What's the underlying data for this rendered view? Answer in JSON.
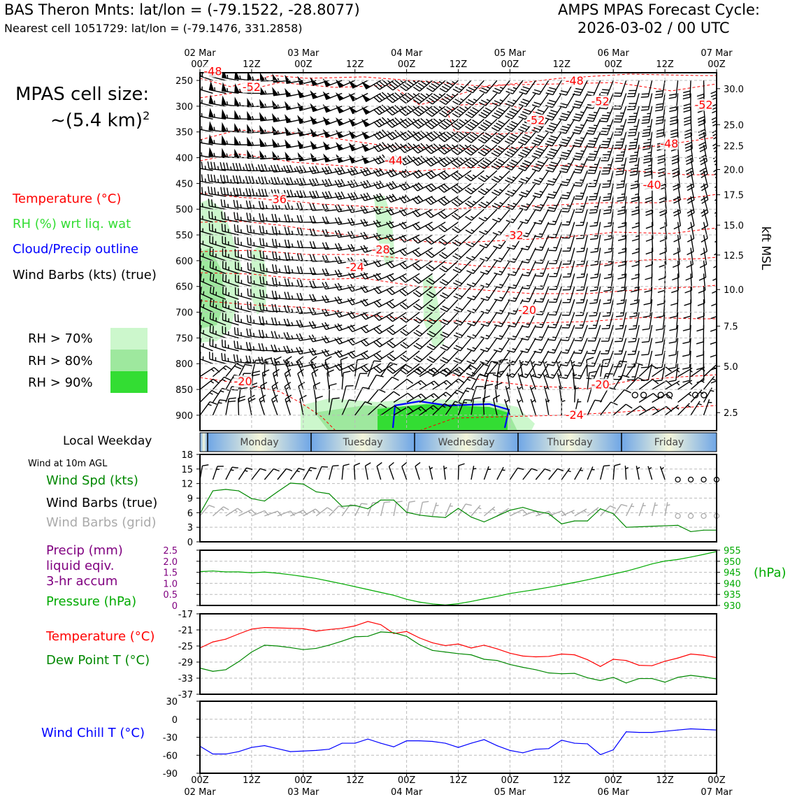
{
  "header": {
    "left_line1": "BAS Theron Mnts: lat/lon = (-79.1522, -28.8077)",
    "left_line2": "Nearest cell 1051729: lat/lon = (-79.1476, 331.2858)",
    "right_line1": "AMPS MPAS Forecast Cycle:",
    "right_line2": "2026-03-02 / 00 UTC"
  },
  "cell_size": {
    "line1": "MPAS cell size:",
    "line2_base": "~(5.4 km)",
    "line2_sup": "2"
  },
  "legend": {
    "temperature": "Temperature (°C)",
    "rh": "RH (%) wrt liq. wat",
    "cloud": "Cloud/Precip outline",
    "wind": "Wind Barbs (kts) (true)",
    "rh_levels": [
      {
        "label": "RH > 70%",
        "color": "#ccf7cc"
      },
      {
        "label": "RH > 80%",
        "color": "#9ee89e"
      },
      {
        "label": "RH > 90%",
        "color": "#33dd33"
      }
    ]
  },
  "colors": {
    "temperature": "#ff0000",
    "rh_light": "#ccf7cc",
    "rh_mid": "#9ee89e",
    "rh_dark": "#33dd33",
    "cloud": "#0000ff",
    "pressure": "#00aa00",
    "dewpoint": "#007700",
    "precip_axis": "#800080",
    "windchill": "#0000ff",
    "grid_barbs": "#aaaaaa"
  },
  "chart_data": [
    {
      "id": "upper-air",
      "type": "heatmap",
      "time_top_labels": [
        {
          "hour": 0,
          "top": "02 Mar",
          "bottom": "00Z"
        },
        {
          "hour": 12,
          "top": "",
          "bottom": "12Z"
        },
        {
          "hour": 24,
          "top": "03 Mar",
          "bottom": "00Z"
        },
        {
          "hour": 36,
          "top": "",
          "bottom": "12Z"
        },
        {
          "hour": 48,
          "top": "04 Mar",
          "bottom": "00Z"
        },
        {
          "hour": 60,
          "top": "",
          "bottom": "12Z"
        },
        {
          "hour": 72,
          "top": "05 Mar",
          "bottom": "00Z"
        },
        {
          "hour": 84,
          "top": "",
          "bottom": "12Z"
        },
        {
          "hour": 96,
          "top": "06 Mar",
          "bottom": "00Z"
        },
        {
          "hour": 108,
          "top": "",
          "bottom": "12Z"
        },
        {
          "hour": 120,
          "top": "07 Mar",
          "bottom": "00Z"
        }
      ],
      "pressure_ticks": [
        "250",
        "300",
        "350",
        "400",
        "450",
        "500",
        "550",
        "600",
        "650",
        "700",
        "750",
        "800",
        "850",
        "900"
      ],
      "pressure_range": [
        235,
        930
      ],
      "kft_ticks": [
        {
          "label": "30.0",
          "p": 266
        },
        {
          "label": "25.0",
          "p": 336
        },
        {
          "label": "22.5",
          "p": 377
        },
        {
          "label": "20.0",
          "p": 423
        },
        {
          "label": "17.5",
          "p": 472
        },
        {
          "label": "15.0",
          "p": 531
        },
        {
          "label": "12.5",
          "p": 589
        },
        {
          "label": "10.0",
          "p": 656
        },
        {
          "label": "7.5",
          "p": 727
        },
        {
          "label": "5.0",
          "p": 805
        },
        {
          "label": "2.5",
          "p": 895
        }
      ],
      "right_axis_label": "kft MSL",
      "temperature_labels": [
        {
          "text": "-48",
          "hour": 3,
          "p": 240
        },
        {
          "text": "-52",
          "hour": 12,
          "p": 270
        },
        {
          "text": "-48",
          "hour": 87,
          "p": 258
        },
        {
          "text": "-52",
          "hour": 93,
          "p": 298
        },
        {
          "text": "-52",
          "hour": 117,
          "p": 305
        },
        {
          "text": "-52",
          "hour": 78,
          "p": 335
        },
        {
          "text": "-48",
          "hour": 109,
          "p": 380
        },
        {
          "text": "-44",
          "hour": 45,
          "p": 413
        },
        {
          "text": "-40",
          "hour": 105,
          "p": 460
        },
        {
          "text": "-36",
          "hour": 18,
          "p": 488
        },
        {
          "text": "-32",
          "hour": 73,
          "p": 558
        },
        {
          "text": "-28",
          "hour": 42,
          "p": 586
        },
        {
          "text": "-24",
          "hour": 36,
          "p": 620
        },
        {
          "text": "-20",
          "hour": 76,
          "p": 703
        },
        {
          "text": "-20",
          "hour": 10,
          "p": 842
        },
        {
          "text": "-20",
          "hour": 93,
          "p": 848
        },
        {
          "text": "-24",
          "hour": 87,
          "p": 907
        }
      ]
    },
    {
      "id": "weekday-band",
      "type": "table",
      "title": "Local Weekday",
      "days": [
        "Monday",
        "Tuesday",
        "Wednesday",
        "Thursday",
        "Friday"
      ]
    },
    {
      "id": "wind-10m",
      "type": "line",
      "title": "Wind at 10m AGL",
      "ylabel": "Wind Spd (kts)",
      "barbs_true_label": "Wind Barbs (true)",
      "barbs_grid_label": "Wind Barbs (grid)",
      "ylim": [
        0,
        18
      ],
      "yticks": [
        0,
        3,
        6,
        9,
        12,
        15,
        18
      ],
      "series": [
        {
          "x": [
            0,
            3,
            6,
            9,
            12,
            15,
            18,
            21,
            24,
            27,
            30,
            33,
            36,
            39,
            42,
            45,
            48,
            51,
            54,
            57,
            60,
            63,
            66,
            69,
            72,
            75,
            78,
            81,
            84,
            87,
            90,
            93,
            96,
            99,
            102,
            105,
            108,
            111,
            114,
            117,
            120
          ],
          "values": [
            5.8,
            10.5,
            10.8,
            10.5,
            8.9,
            8.4,
            10.3,
            12.1,
            11.9,
            10.3,
            9.9,
            7.3,
            7.5,
            6.8,
            8.6,
            8.6,
            6.1,
            5.5,
            5.2,
            5.0,
            6.9,
            5.1,
            4.1,
            5.3,
            6.5,
            7.1,
            6.3,
            5.8,
            3.7,
            4.3,
            4.3,
            6.8,
            5.8,
            3.0,
            3.1,
            3.2,
            3.3,
            3.4,
            2.1,
            2.4,
            2.4
          ]
        }
      ]
    },
    {
      "id": "precip-pressure",
      "type": "line",
      "left_label_lines": [
        "Precip (mm)",
        "liquid eqiv.",
        "3-hr accum"
      ],
      "right_label": "Pressure (hPa)",
      "right_unit": "(hPa)",
      "precip_ticks": [
        "0",
        "0.5",
        "1.0",
        "1.5",
        "2.0",
        "2.5"
      ],
      "precip_ylim": [
        0,
        2.5
      ],
      "pressure_ticks": [
        "930",
        "935",
        "940",
        "945",
        "950",
        "955"
      ],
      "pressure_ylim": [
        930,
        955
      ],
      "series": [
        {
          "name": "Pressure (hPa)",
          "x": [
            0,
            3,
            6,
            9,
            12,
            15,
            18,
            21,
            24,
            27,
            30,
            33,
            36,
            39,
            42,
            45,
            48,
            51,
            54,
            57,
            60,
            63,
            66,
            69,
            72,
            75,
            78,
            81,
            84,
            87,
            90,
            93,
            96,
            99,
            102,
            105,
            108,
            111,
            114,
            117,
            120
          ],
          "values": [
            945.3,
            945.6,
            945.2,
            945.2,
            944.8,
            945.1,
            944.6,
            943.9,
            943.1,
            942.2,
            941.0,
            939.8,
            938.5,
            937.2,
            935.9,
            934.6,
            932.8,
            931.5,
            930.7,
            930.2,
            930.8,
            931.8,
            933.0,
            934.1,
            935.4,
            936.3,
            937.2,
            938.2,
            939.3,
            940.4,
            941.6,
            942.9,
            944.2,
            945.5,
            947.1,
            948.8,
            950.1,
            950.8,
            951.9,
            953.1,
            954.4
          ]
        }
      ]
    },
    {
      "id": "temperature-dewpoint",
      "type": "line",
      "ylim": [
        -37,
        -17
      ],
      "yticks": [
        -37,
        -33,
        -29,
        -25,
        -21,
        -17
      ],
      "series": [
        {
          "name": "Temperature (°C)",
          "x": [
            0,
            3,
            6,
            9,
            12,
            15,
            18,
            21,
            24,
            27,
            30,
            33,
            36,
            39,
            42,
            45,
            48,
            51,
            54,
            57,
            60,
            63,
            66,
            69,
            72,
            75,
            78,
            81,
            84,
            87,
            90,
            93,
            96,
            99,
            102,
            105,
            108,
            111,
            114,
            117,
            120
          ],
          "values": [
            -25.5,
            -24.0,
            -23.3,
            -22.0,
            -20.8,
            -20.4,
            -20.5,
            -20.6,
            -20.7,
            -21.3,
            -20.9,
            -20.6,
            -20.0,
            -18.9,
            -19.7,
            -21.9,
            -21.4,
            -23.0,
            -24.2,
            -24.9,
            -24.5,
            -25.5,
            -24.8,
            -25.7,
            -26.8,
            -27.5,
            -27.7,
            -27.6,
            -27.0,
            -27.2,
            -28.4,
            -30.1,
            -28.3,
            -28.6,
            -29.8,
            -29.9,
            -28.8,
            -28.0,
            -27.0,
            -27.3,
            -27.9
          ]
        },
        {
          "name": "Dew Point T (°C)",
          "x": [
            0,
            3,
            6,
            9,
            12,
            15,
            18,
            21,
            24,
            27,
            30,
            33,
            36,
            39,
            42,
            45,
            48,
            51,
            54,
            57,
            60,
            63,
            66,
            69,
            72,
            75,
            78,
            81,
            84,
            87,
            90,
            93,
            96,
            99,
            102,
            105,
            108,
            111,
            114,
            117,
            120
          ],
          "values": [
            -30.5,
            -31.3,
            -30.9,
            -28.9,
            -26.5,
            -24.8,
            -25.0,
            -25.4,
            -25.9,
            -25.6,
            -24.8,
            -23.8,
            -22.7,
            -22.6,
            -21.5,
            -21.7,
            -22.6,
            -24.7,
            -26.1,
            -26.5,
            -26.9,
            -27.2,
            -28.3,
            -28.6,
            -29.6,
            -30.3,
            -30.9,
            -31.7,
            -31.9,
            -31.8,
            -32.9,
            -33.6,
            -32.8,
            -34.2,
            -33.1,
            -33.1,
            -34.0,
            -32.8,
            -32.3,
            -32.7,
            -33.2
          ]
        }
      ]
    },
    {
      "id": "wind-chill",
      "type": "line",
      "ylabel": "Wind Chill T (°C)",
      "ylim": [
        -90,
        30
      ],
      "yticks": [
        -90,
        -60,
        -30,
        0,
        30
      ],
      "x_bottom_labels": [
        {
          "hour": 0,
          "top": "00Z",
          "bottom": "02 Mar"
        },
        {
          "hour": 12,
          "top": "12Z",
          "bottom": ""
        },
        {
          "hour": 24,
          "top": "00Z",
          "bottom": "03 Mar"
        },
        {
          "hour": 36,
          "top": "12Z",
          "bottom": ""
        },
        {
          "hour": 48,
          "top": "00Z",
          "bottom": "04 Mar"
        },
        {
          "hour": 60,
          "top": "12Z",
          "bottom": ""
        },
        {
          "hour": 72,
          "top": "00Z",
          "bottom": "05 Mar"
        },
        {
          "hour": 84,
          "top": "12Z",
          "bottom": ""
        },
        {
          "hour": 96,
          "top": "00Z",
          "bottom": "06 Mar"
        },
        {
          "hour": 108,
          "top": "12Z",
          "bottom": ""
        },
        {
          "hour": 120,
          "top": "00Z",
          "bottom": "07 Mar"
        }
      ],
      "series": [
        {
          "x": [
            0,
            3,
            6,
            9,
            12,
            15,
            18,
            21,
            24,
            27,
            30,
            33,
            36,
            39,
            42,
            45,
            48,
            51,
            54,
            57,
            60,
            63,
            66,
            69,
            72,
            75,
            78,
            81,
            84,
            87,
            90,
            93,
            96,
            99,
            102,
            105,
            108,
            111,
            114,
            117,
            120
          ],
          "values": [
            -45,
            -58,
            -58,
            -54,
            -47,
            -44,
            -49,
            -54,
            -53,
            -52,
            -50,
            -40,
            -40,
            -33,
            -40,
            -46,
            -36,
            -36,
            -37,
            -40,
            -47,
            -40,
            -34,
            -44,
            -52,
            -56,
            -50,
            -49,
            -35,
            -40,
            -41,
            -59,
            -51,
            -21,
            -22,
            -22,
            -20,
            -18,
            -16,
            -17,
            -18
          ]
        }
      ]
    }
  ]
}
